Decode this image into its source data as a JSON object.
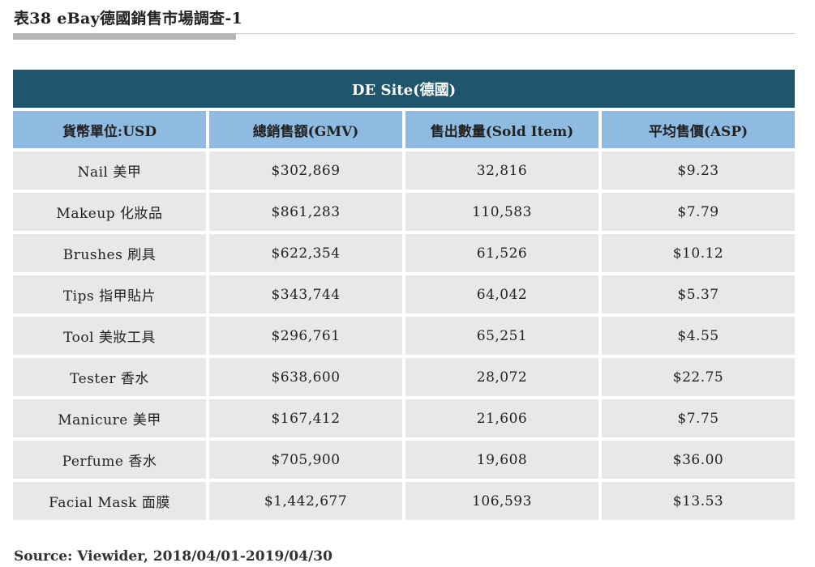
{
  "title": "表38 eBay德國銷售市場調查-1",
  "site_header": "DE Site(德國)",
  "columns": [
    "貨幣單位:USD",
    "總銷售額(GMV)",
    "售出數量(Sold Item)",
    "平均售價(ASP)"
  ],
  "rows": [
    [
      "Nail 美甲",
      "$302,869",
      "32,816",
      "$9.23"
    ],
    [
      "Makeup 化妝品",
      "$861,283",
      "110,583",
      "$7.79"
    ],
    [
      "Brushes 刷具",
      "$622,354",
      "61,526",
      "$10.12"
    ],
    [
      "Tips 指甲貼片",
      "$343,744",
      "64,042",
      "$5.37"
    ],
    [
      "Tool 美妝工具",
      "$296,761",
      "65,251",
      "$4.55"
    ],
    [
      "Tester 香水",
      "$638,600",
      "28,072",
      "$22.75"
    ],
    [
      "Manicure 美甲",
      "$167,412",
      "21,606",
      "$7.75"
    ],
    [
      "Perfume 香水",
      "$705,900",
      "19,608",
      "$36.00"
    ],
    [
      "Facial Mask 面膜",
      "$1,442,677",
      "106,593",
      "$13.53"
    ]
  ],
  "source": "Source: Viewider, 2018/04/01-2019/04/30",
  "colors": {
    "site_header_bg": "#20566b",
    "column_header_bg": "#8fbbe0",
    "row_bg": "#e7e8ea"
  }
}
